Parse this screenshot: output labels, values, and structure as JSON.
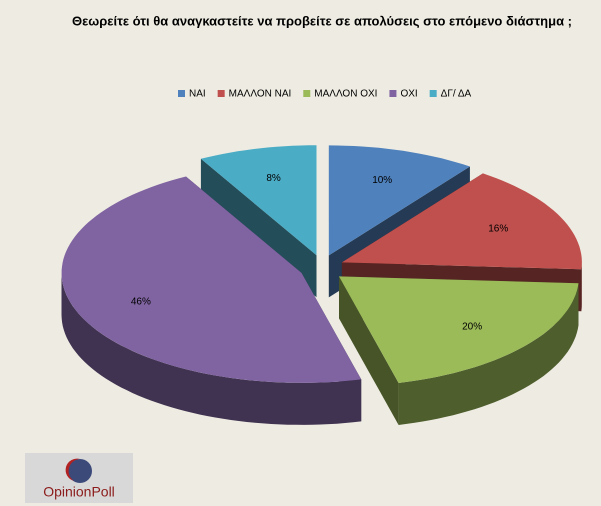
{
  "chart_data": {
    "type": "pie",
    "title": "Θεωρείτε ότι θα αναγκαστείτε να προβείτε σε απολύσεις στο επόμενο διάστημα ;",
    "categories": [
      "ΝΑΙ",
      "ΜΑΛΛΟΝ ΝΑΙ",
      "ΜΑΛΛΟΝ ΟΧΙ",
      "ΟΧΙ",
      "ΔΓ/ ΔΑ"
    ],
    "values": [
      10,
      16,
      20,
      46,
      8
    ],
    "value_labels": [
      "10%",
      "16%",
      "20%",
      "46%",
      "8%"
    ],
    "colors": [
      "#4f81bd",
      "#c0504d",
      "#9bbb59",
      "#8064a2",
      "#4bacc6"
    ],
    "legend": "top"
  },
  "logo": "OpinionPoll"
}
